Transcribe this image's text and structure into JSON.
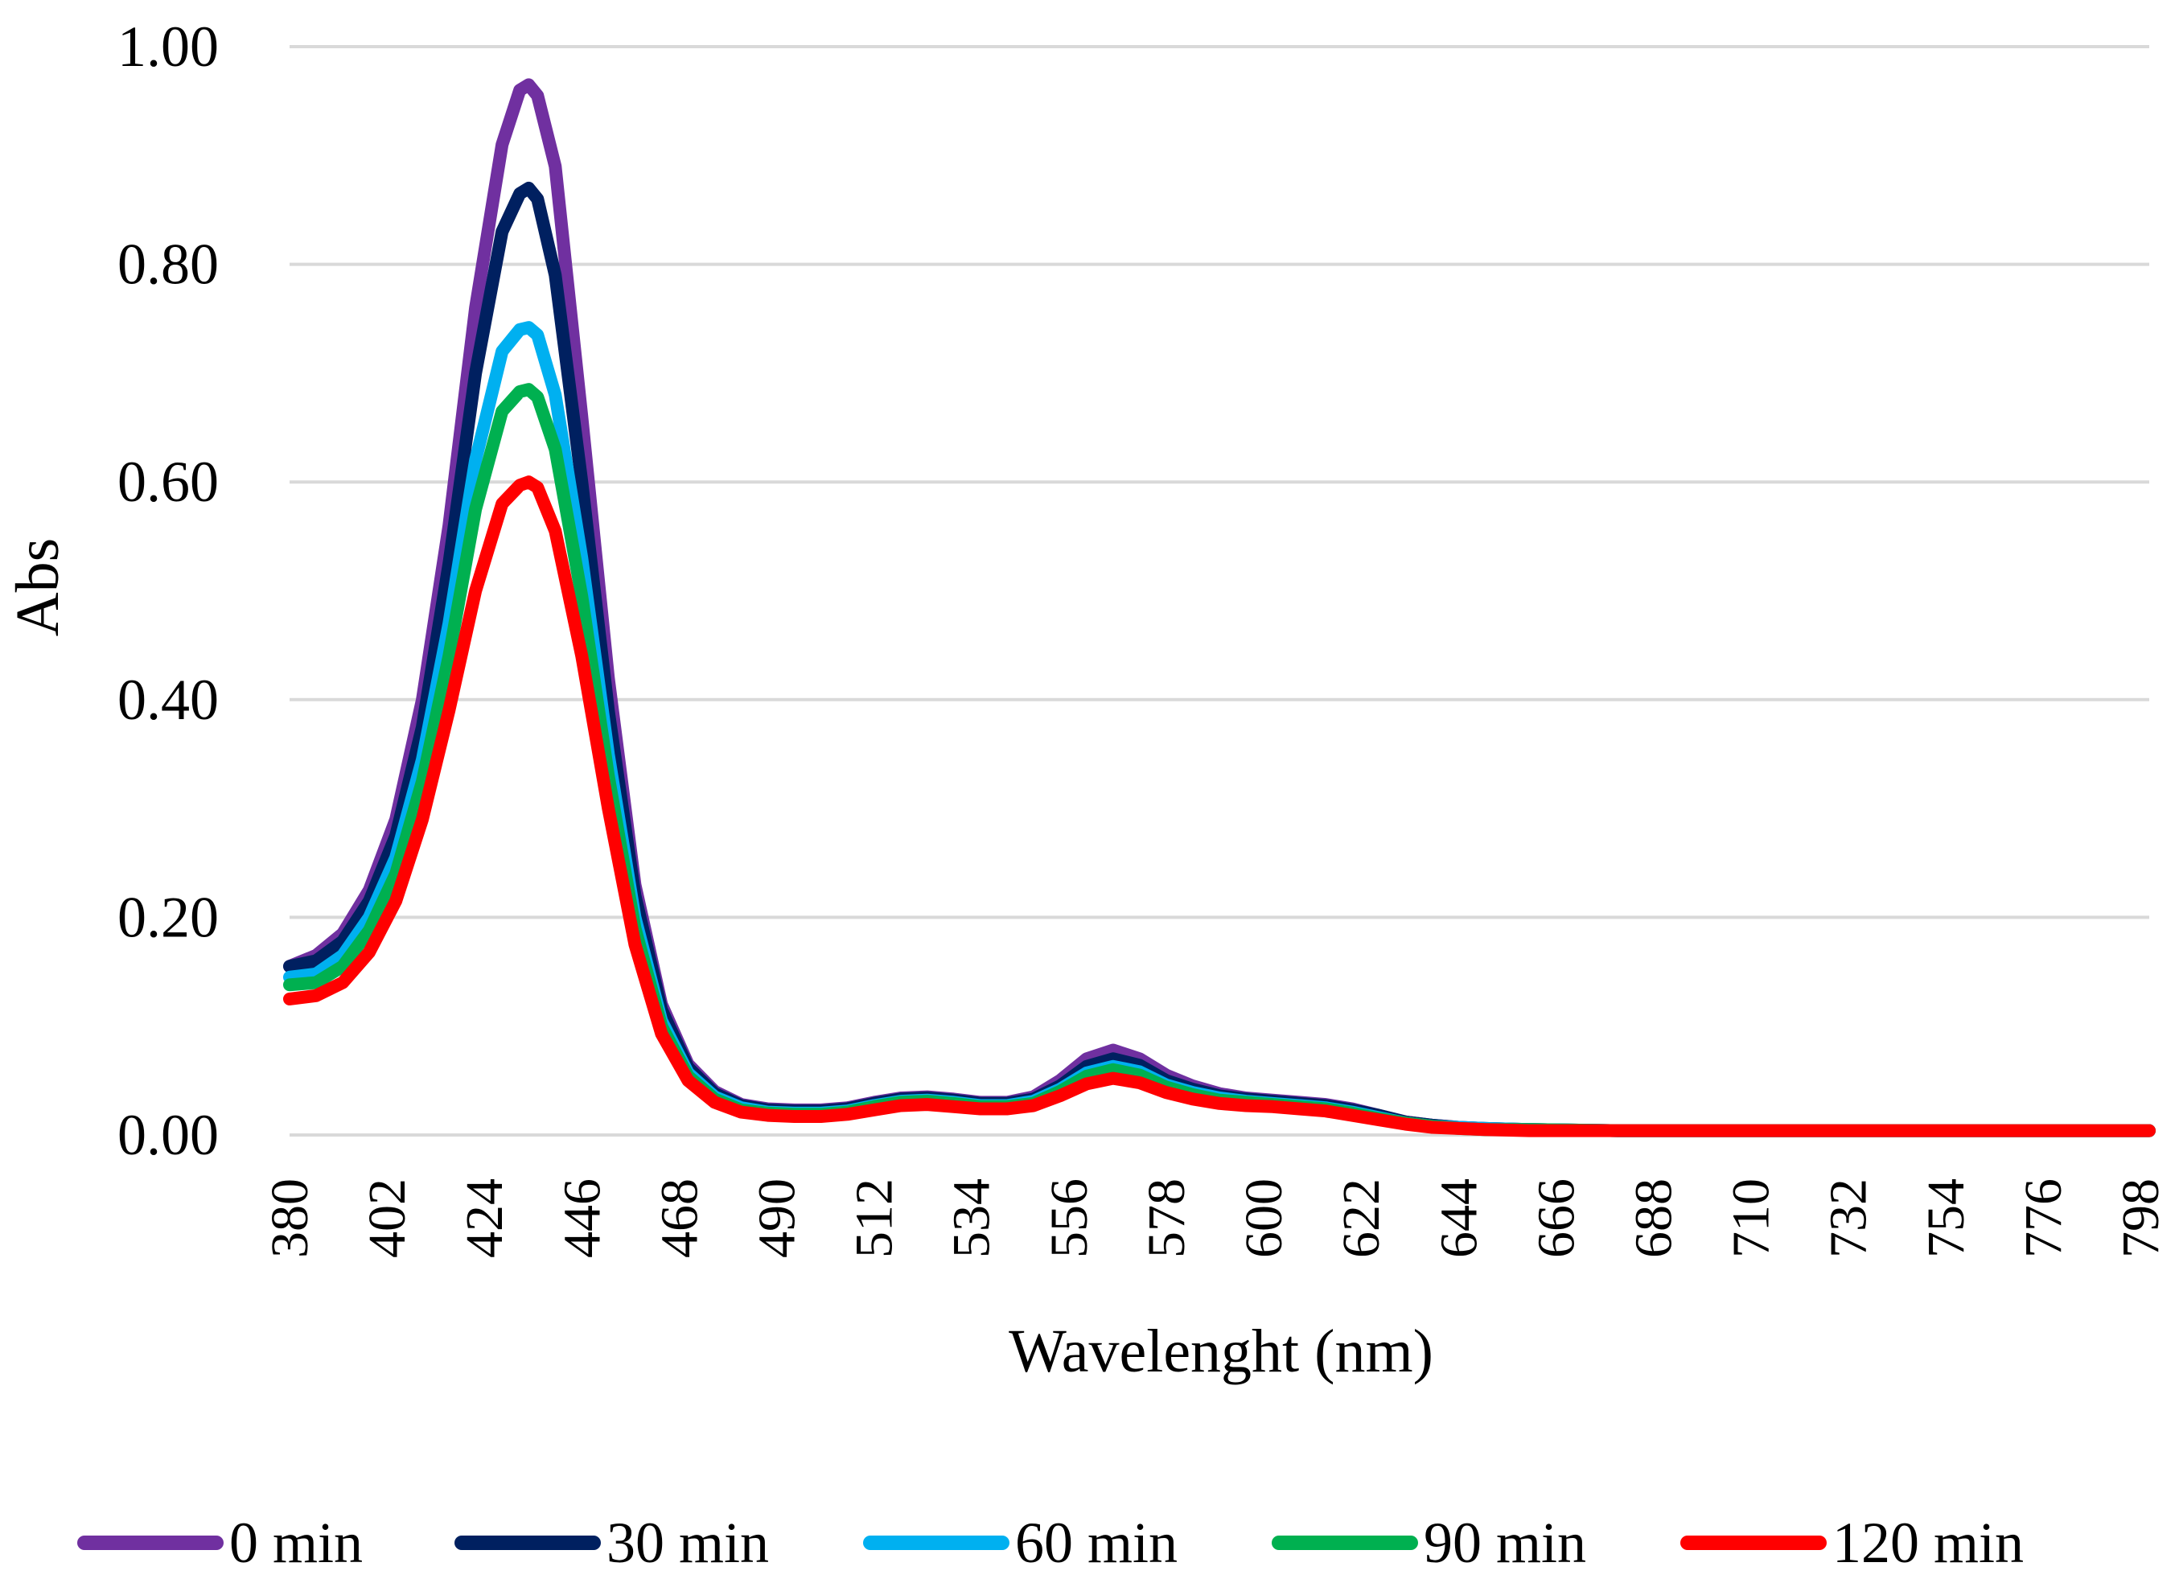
{
  "chart_data": {
    "type": "line",
    "title": "",
    "xlabel": "Wavelenght (nm)",
    "ylabel": "Abs",
    "xlim": [
      380,
      800
    ],
    "ylim": [
      0,
      1
    ],
    "y_ticks": [
      "0.00",
      "0.20",
      "0.40",
      "0.60",
      "0.80",
      "1.00"
    ],
    "y_tick_values": [
      0,
      0.2,
      0.4,
      0.6,
      0.8,
      1.0
    ],
    "x_ticks": [
      "380",
      "402",
      "424",
      "446",
      "468",
      "490",
      "512",
      "534",
      "556",
      "578",
      "600",
      "622",
      "644",
      "666",
      "688",
      "710",
      "732",
      "754",
      "776",
      "798"
    ],
    "grid": true,
    "legend_position": "bottom",
    "x": [
      380,
      386,
      392,
      398,
      404,
      410,
      416,
      422,
      428,
      432,
      434,
      436,
      440,
      446,
      452,
      458,
      464,
      470,
      476,
      482,
      488,
      494,
      500,
      506,
      512,
      518,
      524,
      530,
      536,
      542,
      548,
      554,
      560,
      566,
      572,
      578,
      584,
      590,
      596,
      602,
      608,
      614,
      620,
      626,
      632,
      638,
      644,
      650,
      660,
      680,
      700,
      720,
      740,
      760,
      780,
      800
    ],
    "series": [
      {
        "name": "0 min",
        "color": "#7030a0",
        "values": [
          0.155,
          0.165,
          0.185,
          0.225,
          0.29,
          0.4,
          0.56,
          0.76,
          0.91,
          0.96,
          0.965,
          0.955,
          0.89,
          0.66,
          0.42,
          0.23,
          0.12,
          0.065,
          0.04,
          0.028,
          0.024,
          0.023,
          0.023,
          0.025,
          0.03,
          0.034,
          0.035,
          0.033,
          0.03,
          0.03,
          0.035,
          0.05,
          0.07,
          0.078,
          0.07,
          0.055,
          0.045,
          0.038,
          0.034,
          0.032,
          0.03,
          0.028,
          0.024,
          0.018,
          0.012,
          0.009,
          0.007,
          0.006,
          0.005,
          0.004,
          0.004,
          0.004,
          0.004,
          0.004,
          0.004,
          0.004
        ]
      },
      {
        "name": "30 min",
        "color": "#002060",
        "values": [
          0.155,
          0.16,
          0.178,
          0.215,
          0.275,
          0.375,
          0.525,
          0.7,
          0.83,
          0.865,
          0.87,
          0.86,
          0.79,
          0.6,
          0.39,
          0.22,
          0.115,
          0.062,
          0.038,
          0.027,
          0.023,
          0.022,
          0.022,
          0.024,
          0.029,
          0.033,
          0.034,
          0.032,
          0.029,
          0.029,
          0.033,
          0.045,
          0.063,
          0.07,
          0.064,
          0.05,
          0.042,
          0.036,
          0.033,
          0.031,
          0.029,
          0.027,
          0.023,
          0.018,
          0.012,
          0.009,
          0.007,
          0.006,
          0.005,
          0.004,
          0.004,
          0.004,
          0.004,
          0.004,
          0.004,
          0.004
        ]
      },
      {
        "name": "60 min",
        "color": "#00b0f0",
        "values": [
          0.145,
          0.148,
          0.165,
          0.2,
          0.255,
          0.345,
          0.47,
          0.62,
          0.72,
          0.74,
          0.742,
          0.735,
          0.68,
          0.53,
          0.35,
          0.2,
          0.105,
          0.057,
          0.035,
          0.025,
          0.021,
          0.02,
          0.02,
          0.022,
          0.027,
          0.031,
          0.032,
          0.03,
          0.027,
          0.027,
          0.031,
          0.042,
          0.057,
          0.063,
          0.058,
          0.046,
          0.039,
          0.034,
          0.031,
          0.029,
          0.027,
          0.025,
          0.021,
          0.016,
          0.011,
          0.008,
          0.007,
          0.006,
          0.005,
          0.004,
          0.004,
          0.004,
          0.004,
          0.004,
          0.004,
          0.004
        ]
      },
      {
        "name": "90 min",
        "color": "#00b050",
        "values": [
          0.138,
          0.14,
          0.155,
          0.188,
          0.24,
          0.325,
          0.44,
          0.575,
          0.665,
          0.683,
          0.685,
          0.678,
          0.63,
          0.495,
          0.33,
          0.19,
          0.1,
          0.054,
          0.033,
          0.023,
          0.02,
          0.019,
          0.019,
          0.021,
          0.026,
          0.03,
          0.031,
          0.029,
          0.026,
          0.026,
          0.029,
          0.04,
          0.054,
          0.06,
          0.055,
          0.044,
          0.037,
          0.032,
          0.03,
          0.028,
          0.026,
          0.024,
          0.02,
          0.015,
          0.011,
          0.008,
          0.006,
          0.005,
          0.005,
          0.004,
          0.004,
          0.004,
          0.004,
          0.004,
          0.004,
          0.004
        ]
      },
      {
        "name": "120 min",
        "color": "#ff0000",
        "values": [
          0.125,
          0.128,
          0.14,
          0.168,
          0.215,
          0.29,
          0.39,
          0.5,
          0.58,
          0.597,
          0.6,
          0.595,
          0.555,
          0.44,
          0.3,
          0.175,
          0.093,
          0.05,
          0.03,
          0.021,
          0.018,
          0.017,
          0.017,
          0.019,
          0.023,
          0.027,
          0.028,
          0.026,
          0.024,
          0.024,
          0.027,
          0.036,
          0.047,
          0.052,
          0.048,
          0.039,
          0.033,
          0.029,
          0.027,
          0.026,
          0.024,
          0.022,
          0.018,
          0.014,
          0.01,
          0.007,
          0.006,
          0.005,
          0.004,
          0.004,
          0.004,
          0.004,
          0.004,
          0.004,
          0.004,
          0.004
        ]
      }
    ]
  }
}
